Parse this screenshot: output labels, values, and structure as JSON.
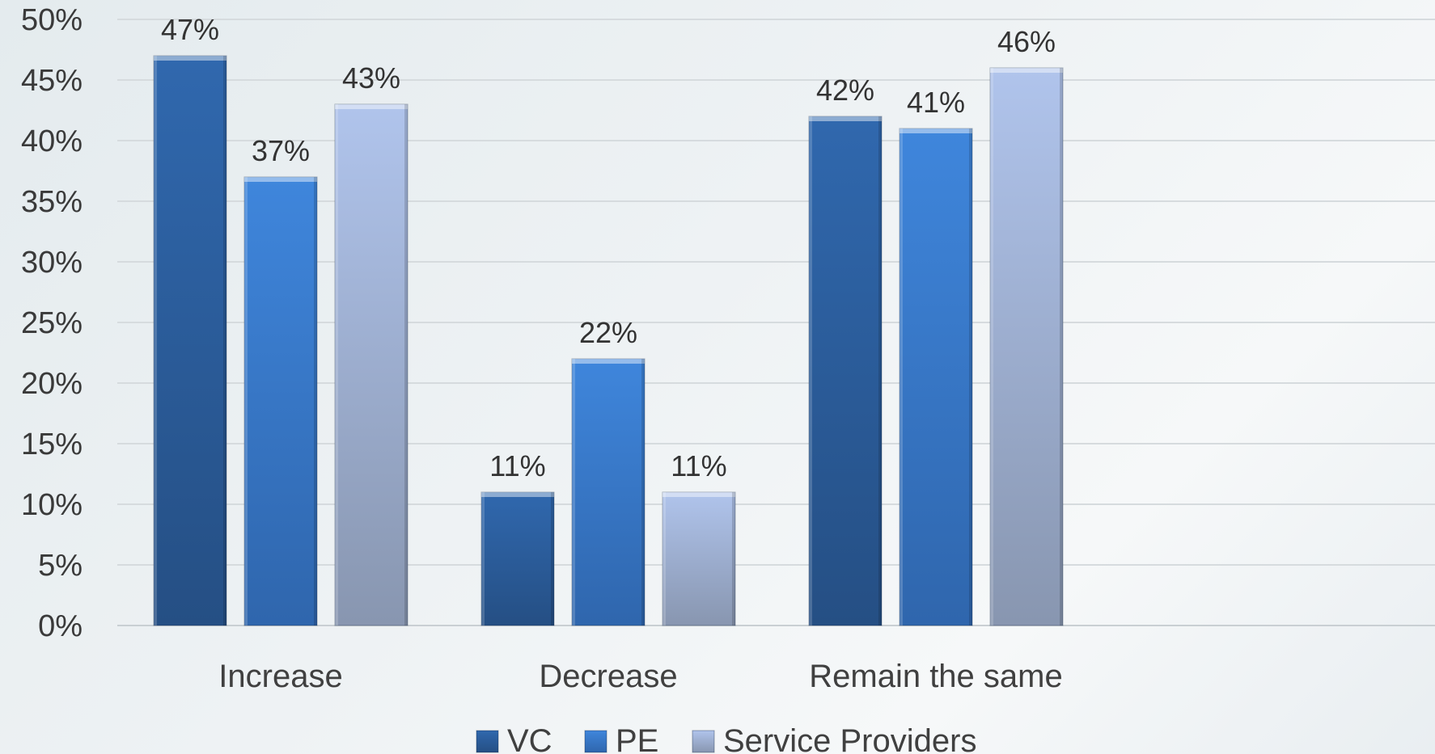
{
  "chart_data": {
    "type": "bar",
    "title": "",
    "xlabel": "",
    "ylabel": "",
    "categories": [
      "Increase",
      "Decrease",
      "Remain the same"
    ],
    "series": [
      {
        "name": "VC",
        "values": [
          47,
          11,
          42
        ],
        "color": "#2f5f9e"
      },
      {
        "name": "PE",
        "values": [
          37,
          22,
          41
        ],
        "color": "#3a7fd5"
      },
      {
        "name": "Service Providers",
        "values": [
          43,
          11,
          46
        ],
        "color": "#a9bde6"
      }
    ],
    "data_labels": [
      [
        "47%",
        "11%",
        "42%"
      ],
      [
        "37%",
        "22%",
        "41%"
      ],
      [
        "43%",
        "11%",
        "46%"
      ]
    ],
    "y_ticks": [
      "0%",
      "5%",
      "10%",
      "15%",
      "20%",
      "25%",
      "30%",
      "35%",
      "40%",
      "45%",
      "50%"
    ],
    "ylim": [
      0,
      50
    ],
    "grid": true,
    "legend_position": "bottom"
  }
}
